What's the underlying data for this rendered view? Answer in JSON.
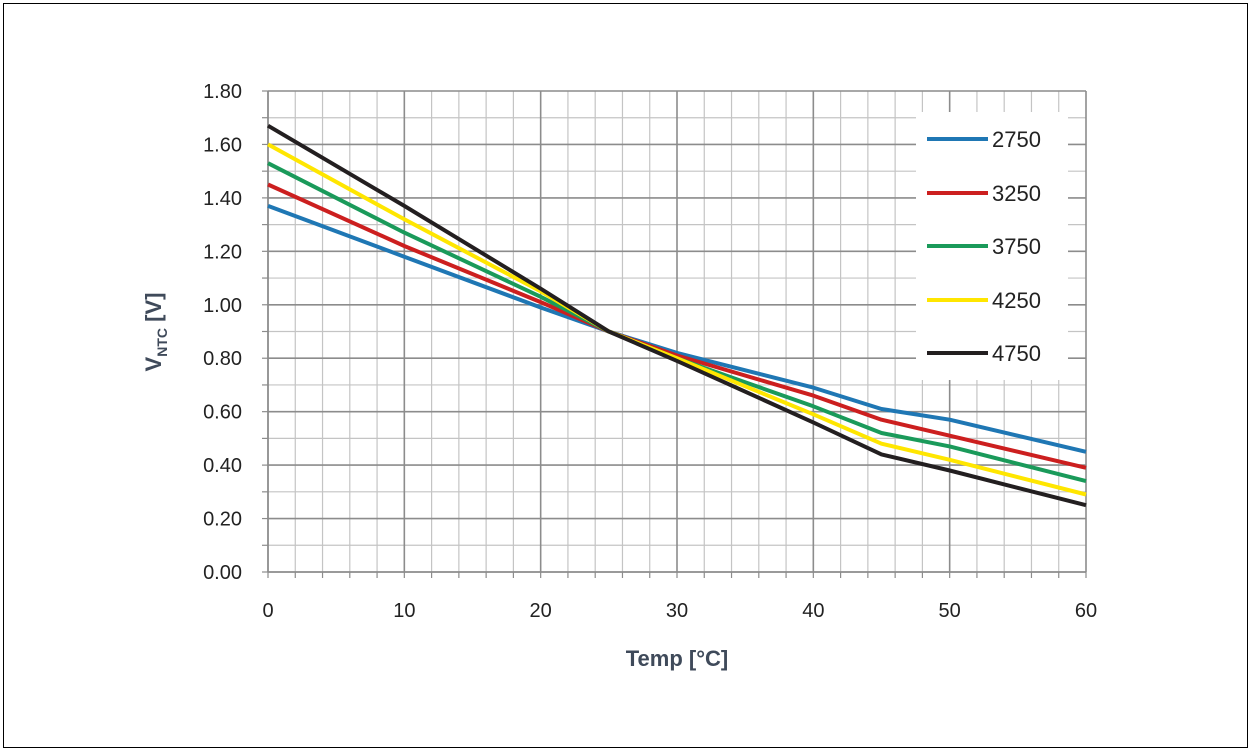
{
  "chart_data": {
    "type": "line",
    "title": "",
    "xlabel": "Temp [°C]",
    "ylabel_main": "V",
    "ylabel_sub": "NTC",
    "ylabel_unit": " [V]",
    "xlim": [
      0,
      60
    ],
    "ylim": [
      0,
      1.8
    ],
    "x_ticks": [
      "0",
      "10",
      "20",
      "30",
      "40",
      "50",
      "60"
    ],
    "y_ticks": [
      "0.00",
      "0.20",
      "0.40",
      "0.60",
      "0.80",
      "1.00",
      "1.20",
      "1.40",
      "1.60",
      "1.80"
    ],
    "grid": true,
    "legend_position": "top-right",
    "x": [
      0,
      10,
      20,
      25,
      30,
      40,
      45,
      50,
      60
    ],
    "series": [
      {
        "name": "2750",
        "color": "#1f77b4",
        "values": [
          1.37,
          1.18,
          0.99,
          0.9,
          0.82,
          0.69,
          0.61,
          0.57,
          0.45
        ]
      },
      {
        "name": "3250",
        "color": "#cc1f1f",
        "values": [
          1.45,
          1.22,
          1.01,
          0.9,
          0.81,
          0.66,
          0.57,
          0.51,
          0.39
        ]
      },
      {
        "name": "3750",
        "color": "#1a9a5a",
        "values": [
          1.53,
          1.27,
          1.03,
          0.9,
          0.8,
          0.62,
          0.52,
          0.47,
          0.34
        ]
      },
      {
        "name": "4250",
        "color": "#ffe600",
        "values": [
          1.6,
          1.32,
          1.05,
          0.9,
          0.8,
          0.59,
          0.48,
          0.42,
          0.29
        ]
      },
      {
        "name": "4750",
        "color": "#231f20",
        "values": [
          1.67,
          1.37,
          1.06,
          0.9,
          0.79,
          0.56,
          0.44,
          0.38,
          0.25
        ]
      }
    ]
  }
}
